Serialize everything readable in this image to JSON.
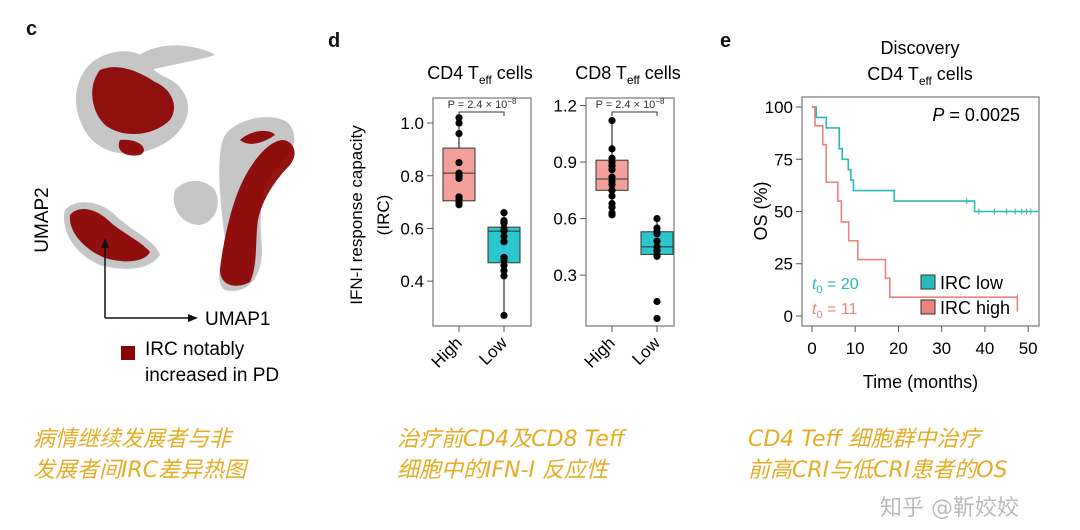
{
  "panels": {
    "c": {
      "label": "c",
      "y_axis": "UMAP2",
      "x_axis": "UMAP1",
      "legend": [
        "IRC notably",
        "increased in PD"
      ],
      "legend_color": "#8b0000",
      "background_color": "#c8c8c8"
    },
    "d": {
      "label": "d",
      "ylabel_line1": "IFN-I response capacity",
      "ylabel_line2": "(IRC)"
    },
    "e": {
      "label": "e"
    }
  },
  "chart_data": [
    {
      "type": "scatter",
      "panel": "c",
      "xlabel": "UMAP1",
      "ylabel": "UMAP2",
      "legend": [
        "IRC notably increased in PD"
      ]
    },
    {
      "type": "box",
      "panel": "d",
      "title": "CD4 T",
      "title_sub": "eff",
      "title_end": " cells",
      "ylabel": "IFN-I response capacity (IRC)",
      "ylim": [
        0.23,
        1.095
      ],
      "yticks": [
        "1.0",
        "0.8",
        "0.6",
        "0.4"
      ],
      "ytick_values": [
        1.0,
        0.8,
        0.6,
        0.4
      ],
      "annotation": "P = 2.4 × 10",
      "annotation_exp": "−8",
      "categories": [
        "High",
        "Low"
      ],
      "colors": [
        "#f4a09a",
        "#2cc6cf"
      ],
      "boxes": [
        {
          "q1": 0.705,
          "median": 0.81,
          "q3": 0.905,
          "whisker_low": 0.69,
          "whisker_high": 1.02,
          "points": [
            1.02,
            1.0,
            0.96,
            0.85,
            0.81,
            0.8,
            0.79,
            0.72,
            0.71,
            0.7,
            0.69
          ]
        },
        {
          "q1": 0.47,
          "median": 0.59,
          "q3": 0.605,
          "whisker_low": 0.27,
          "whisker_high": 0.66,
          "points": [
            0.66,
            0.63,
            0.62,
            0.6,
            0.59,
            0.57,
            0.55,
            0.49,
            0.48,
            0.46,
            0.44,
            0.42,
            0.27
          ]
        }
      ]
    },
    {
      "type": "box",
      "panel": "d",
      "title": "CD8 T",
      "title_sub": "eff",
      "title_end": " cells",
      "ylim": [
        0.03,
        1.24
      ],
      "yticks": [
        "1.2",
        "0.9",
        "0.6",
        "0.3"
      ],
      "ytick_values": [
        1.2,
        0.9,
        0.6,
        0.3
      ],
      "annotation": "P = 2.4 × 10",
      "annotation_exp": "−8",
      "categories": [
        "High",
        "Low"
      ],
      "colors": [
        "#f4a09a",
        "#2cc6cf"
      ],
      "boxes": [
        {
          "q1": 0.75,
          "median": 0.81,
          "q3": 0.91,
          "whisker_low": 0.62,
          "whisker_high": 1.12,
          "points": [
            1.12,
            0.97,
            0.92,
            0.9,
            0.88,
            0.86,
            0.82,
            0.8,
            0.78,
            0.75,
            0.72,
            0.68,
            0.66,
            0.63,
            0.62
          ]
        },
        {
          "q1": 0.41,
          "median": 0.45,
          "q3": 0.53,
          "whisker_low": 0.4,
          "whisker_high": 0.6,
          "points": [
            0.6,
            0.55,
            0.53,
            0.52,
            0.48,
            0.45,
            0.43,
            0.41,
            0.4,
            0.16,
            0.07
          ]
        }
      ]
    },
    {
      "type": "line",
      "panel": "e",
      "title_line1": "Discovery",
      "title": "CD4 T",
      "title_sub": "eff",
      "title_end": " cells",
      "xlabel": "Time (months)",
      "ylabel": "OS (%)",
      "xlim": [
        -2.3,
        52.5
      ],
      "ylim": [
        -4.8,
        104.8
      ],
      "xticks": [
        "0",
        "10",
        "20",
        "30",
        "40",
        "50"
      ],
      "xtick_values": [
        0,
        10,
        20,
        30,
        40,
        50
      ],
      "yticks": [
        "100",
        "75",
        "50",
        "25",
        "0"
      ],
      "ytick_values": [
        100,
        75,
        50,
        25,
        0
      ],
      "annotation": "P",
      "annotation_end": " = 0.0025",
      "series": [
        {
          "name": "IRC low",
          "color": "#2ab8bb",
          "n_label": "t",
          "n_sub": "0",
          "n_value": " = 20",
          "steps": [
            [
              0,
              100
            ],
            [
              1,
              95
            ],
            [
              3.3,
              90
            ],
            [
              6.3,
              80
            ],
            [
              7,
              75
            ],
            [
              8.4,
              70
            ],
            [
              9,
              65
            ],
            [
              9.6,
              60
            ],
            [
              19,
              55
            ],
            [
              37.6,
              50
            ],
            [
              52.5,
              50
            ]
          ],
          "censored": [
            [
              35.8,
              55
            ],
            [
              38.6,
              50
            ],
            [
              42.2,
              50
            ],
            [
              45,
              50
            ],
            [
              47,
              50
            ],
            [
              48.5,
              50
            ],
            [
              49.6,
              50
            ],
            [
              50.6,
              50
            ]
          ]
        },
        {
          "name": "IRC high",
          "color": "#e8837d",
          "n_label": "t",
          "n_sub": "0",
          "n_value": " = 11",
          "steps": [
            [
              0,
              100
            ],
            [
              0.7,
              91
            ],
            [
              2.5,
              82
            ],
            [
              3.3,
              64
            ],
            [
              6,
              55
            ],
            [
              6.8,
              45
            ],
            [
              8.5,
              36
            ],
            [
              10.6,
              27
            ],
            [
              17,
              18
            ],
            [
              18,
              9
            ],
            [
              47.5,
              9
            ]
          ],
          "censored": [
            [
              47.5,
              9
            ]
          ]
        }
      ]
    }
  ],
  "captions": [
    [
      "病情继续发展者与非",
      "发展者间IRC差异热图"
    ],
    [
      "治疗前CD4及CD8 Teff",
      "细胞中的IFN-I 反应性"
    ],
    [
      "CD4 Teff 细胞群中治疗",
      "前高CRI与低CRI患者的OS"
    ]
  ],
  "watermark": "知乎 @靳姣姣",
  "caption_color": "#e5ad25"
}
